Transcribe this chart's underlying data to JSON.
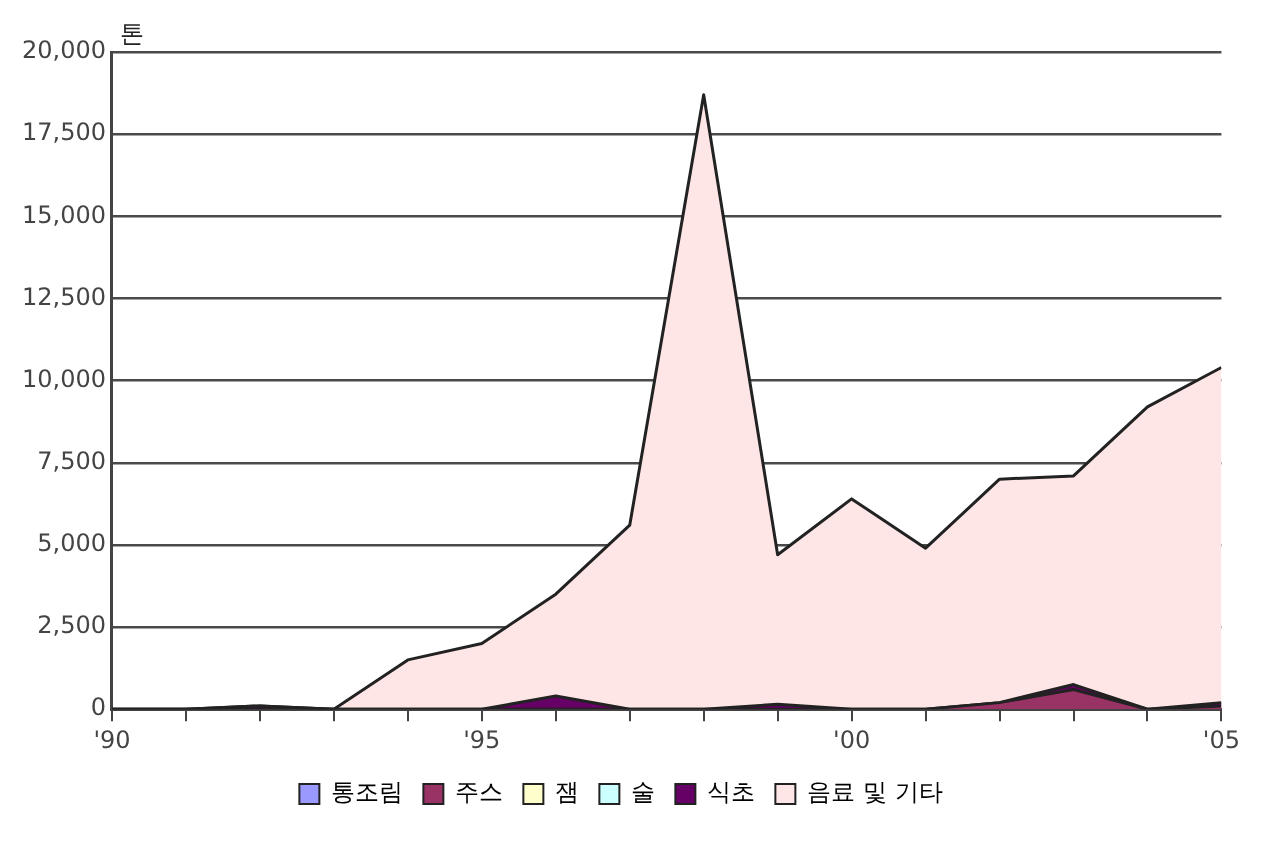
{
  "chart_data": {
    "type": "area",
    "ylabel": "톤",
    "stacked": true,
    "x": [
      1990,
      1991,
      1992,
      1993,
      1994,
      1995,
      1996,
      1997,
      1998,
      1999,
      2000,
      2001,
      2002,
      2003,
      2004,
      2005
    ],
    "series": [
      {
        "name": "통조림",
        "color": "#9999ff",
        "values": [
          null,
          null,
          null,
          null,
          null,
          null,
          null,
          null,
          null,
          null,
          null,
          null,
          null,
          null,
          null,
          null
        ]
      },
      {
        "name": "주스",
        "color": "#993366",
        "values": [
          0,
          0,
          0,
          0,
          0,
          0,
          0,
          0,
          0,
          0,
          0,
          0,
          200,
          600,
          0,
          100
        ]
      },
      {
        "name": "잼",
        "color": "#ffffcc",
        "values": [
          null,
          null,
          null,
          null,
          null,
          null,
          null,
          null,
          null,
          null,
          null,
          null,
          null,
          null,
          null,
          null
        ]
      },
      {
        "name": "술",
        "color": "#ccffff",
        "values": [
          null,
          null,
          null,
          null,
          null,
          null,
          null,
          null,
          null,
          null,
          null,
          null,
          null,
          null,
          null,
          null
        ]
      },
      {
        "name": "식초",
        "color": "#660066",
        "values": [
          0,
          0,
          100,
          0,
          0,
          0,
          400,
          0,
          0,
          150,
          0,
          0,
          0,
          150,
          0,
          100
        ]
      },
      {
        "name": "음료 및 기타",
        "color": "#ffe6e6",
        "values": [
          0,
          0,
          0,
          0,
          1500,
          2000,
          3100,
          5600,
          18700,
          4550,
          6400,
          4900,
          6800,
          6350,
          9200,
          10200
        ]
      }
    ],
    "xlim": [
      1990,
      2005
    ],
    "xticks": [
      {
        "value": 1990,
        "label": "'90"
      },
      {
        "value": 1991,
        "label": null
      },
      {
        "value": 1992,
        "label": null
      },
      {
        "value": 1993,
        "label": null
      },
      {
        "value": 1994,
        "label": null
      },
      {
        "value": 1995,
        "label": "'95"
      },
      {
        "value": 1996,
        "label": null
      },
      {
        "value": 1997,
        "label": null
      },
      {
        "value": 1998,
        "label": null
      },
      {
        "value": 1999,
        "label": null
      },
      {
        "value": 2000,
        "label": "'00"
      },
      {
        "value": 2001,
        "label": null
      },
      {
        "value": 2002,
        "label": null
      },
      {
        "value": 2003,
        "label": null
      },
      {
        "value": 2004,
        "label": null
      },
      {
        "value": 2005,
        "label": "'05"
      }
    ],
    "ylim": [
      0,
      20000
    ],
    "yticks": [
      {
        "value": 0,
        "label": "0"
      },
      {
        "value": 2500,
        "label": "2,500"
      },
      {
        "value": 5000,
        "label": "5,000"
      },
      {
        "value": 7500,
        "label": "7,500"
      },
      {
        "value": 10000,
        "label": "10,000"
      },
      {
        "value": 12500,
        "label": "12,500"
      },
      {
        "value": 15000,
        "label": "15,000"
      },
      {
        "value": 17500,
        "label": "17,500"
      },
      {
        "value": 20000,
        "label": "20,000"
      }
    ],
    "grid": "y",
    "legend": "bottom"
  }
}
